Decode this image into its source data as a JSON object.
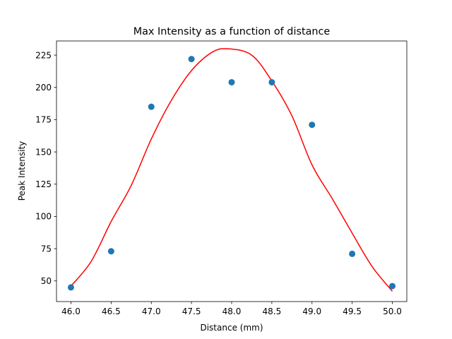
{
  "chart_data": {
    "type": "scatter",
    "title": "Max Intensity as a function of distance",
    "xlabel": "Distance (mm)",
    "ylabel": "Peak Intensity",
    "xlim": [
      45.82,
      50.18
    ],
    "ylim": [
      34,
      236
    ],
    "xticks": [
      46.0,
      46.5,
      47.0,
      47.5,
      48.0,
      48.5,
      49.0,
      49.5,
      50.0
    ],
    "xtick_labels": [
      "46.0",
      "46.5",
      "47.0",
      "47.5",
      "48.0",
      "48.5",
      "49.0",
      "49.5",
      "50.0"
    ],
    "yticks": [
      50,
      75,
      100,
      125,
      150,
      175,
      200,
      225
    ],
    "ytick_labels": [
      "50",
      "75",
      "100",
      "125",
      "150",
      "175",
      "200",
      "225"
    ],
    "grid": false,
    "series": [
      {
        "kind": "scatter",
        "color": "#1f77b4",
        "x": [
          46.0,
          46.5,
          47.0,
          47.5,
          48.0,
          48.5,
          49.0,
          49.5,
          50.0
        ],
        "y": [
          45,
          73,
          185,
          222,
          204,
          204,
          171,
          71,
          46
        ]
      },
      {
        "kind": "line",
        "color": "#ff0000",
        "x": [
          46.0,
          46.25,
          46.5,
          46.75,
          47.0,
          47.25,
          47.5,
          47.75,
          47.95,
          48.25,
          48.5,
          48.75,
          49.0,
          49.25,
          49.5,
          49.75,
          50.0
        ],
        "y": [
          46,
          65,
          96,
          124,
          160,
          190,
          213,
          227,
          230,
          225,
          205,
          178,
          140,
          114,
          87,
          61,
          42
        ]
      }
    ]
  }
}
